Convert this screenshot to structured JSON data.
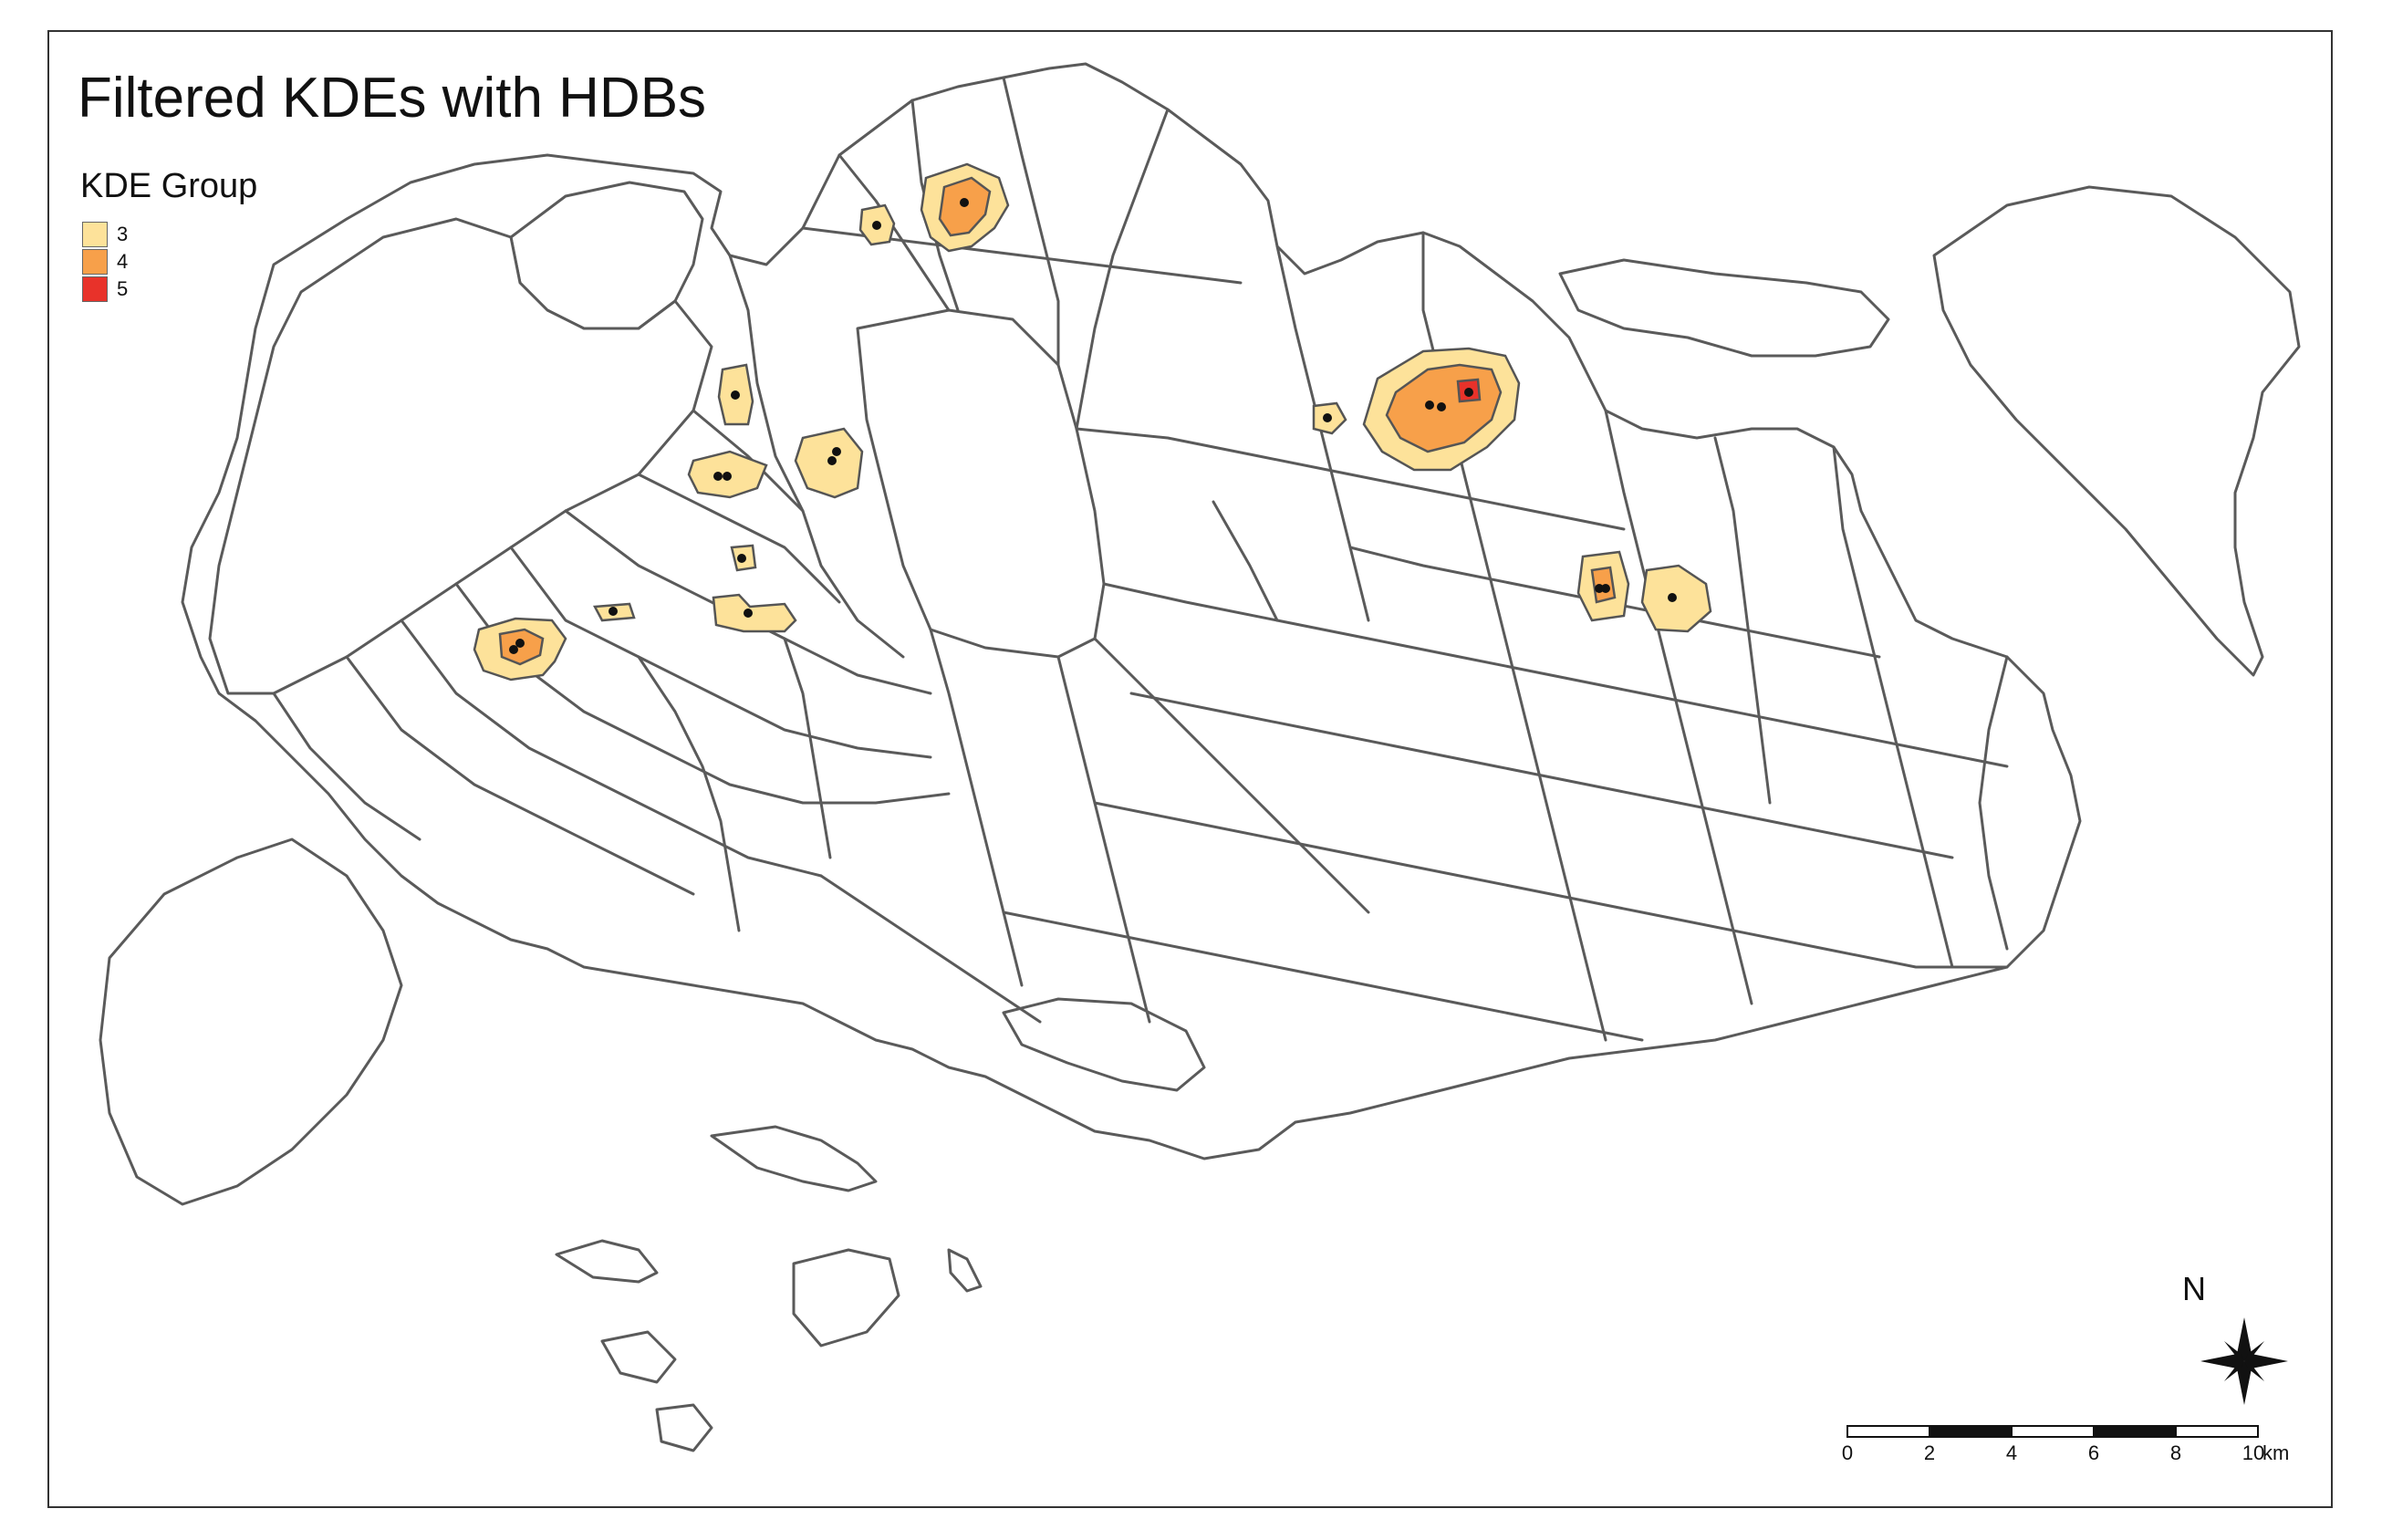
{
  "map": {
    "title": "Filtered KDEs with HDBs",
    "legend": {
      "title": "KDE Group",
      "items": [
        {
          "label": "3",
          "color": "#fde29a"
        },
        {
          "label": "4",
          "color": "#f7a04a"
        },
        {
          "label": "5",
          "color": "#e8322a"
        }
      ]
    },
    "north_arrow": {
      "label": "N"
    },
    "scale_bar": {
      "ticks": [
        "0",
        "2",
        "4",
        "6",
        "8",
        "10"
      ],
      "unit": "km"
    },
    "colors": {
      "boundary": "#5a5a5a",
      "background": "#ffffff",
      "hdb_point": "#111111"
    }
  }
}
